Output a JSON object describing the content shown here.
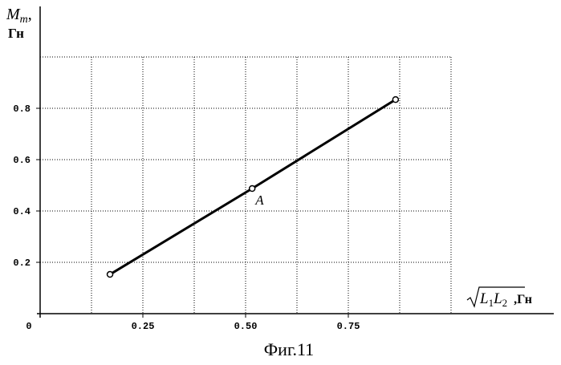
{
  "chart_data": {
    "type": "line",
    "x_label": [
      "L",
      "1",
      "L",
      "2",
      ",Гн"
    ],
    "y_label": [
      "M",
      "m",
      ",",
      "Гн"
    ],
    "caption": "Фиг.11",
    "annotation": {
      "text": "A",
      "point": 1
    },
    "x": [
      0.17,
      0.516,
      0.865
    ],
    "values": [
      0.153,
      0.4875,
      0.834
    ],
    "color": "#000000",
    "xlim": [
      0,
      1
    ],
    "ylim": [
      0,
      1
    ],
    "xticks": [
      0,
      0.25,
      {
        "value": 0.5,
        "label": "0.50"
      },
      0.75
    ],
    "yticks": [
      0.2,
      0.4,
      0.6,
      0.8
    ],
    "xgrid": [
      0.125,
      0.25,
      0.375,
      0.5,
      0.625,
      0.75,
      0.875,
      1
    ],
    "ygrid": [
      0.2,
      0.4,
      0.6,
      0.8,
      1
    ],
    "grid": true
  }
}
